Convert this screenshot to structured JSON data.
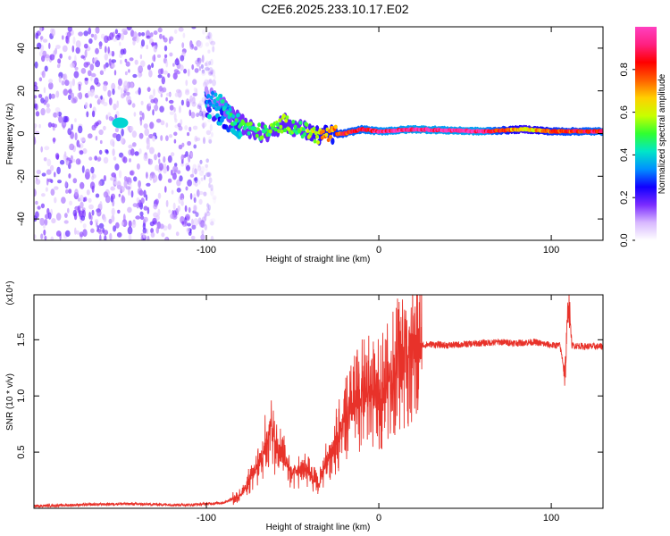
{
  "title": "C2E6.2025.233.10.17.E02",
  "chart_data": [
    {
      "type": "heatmap",
      "name": "spectrogram",
      "xlabel": "Height of straight line (km)",
      "ylabel": "Frequency (Hz)",
      "xlim": [
        -200,
        130
      ],
      "ylim": [
        -50,
        50
      ],
      "x_ticks": [
        -100,
        0,
        100
      ],
      "x_tick_labels": [
        "-100",
        "0",
        "100"
      ],
      "y_ticks": [
        -40,
        -20,
        0,
        20,
        40
      ],
      "y_tick_labels": [
        "-40",
        "-20",
        "0",
        "20",
        "40"
      ],
      "colorbar": {
        "label": "Normalized spectral amplitude",
        "range": [
          0,
          1
        ],
        "ticks": [
          0,
          0.2,
          0.4,
          0.6,
          0.8
        ],
        "tick_labels": [
          "0.0",
          "0.2",
          "0.4",
          "0.6",
          "0.8"
        ],
        "colors": [
          "#ffffff",
          "#d8b8ff",
          "#7a2bff",
          "#1000ff",
          "#0090ff",
          "#00e6c8",
          "#30ff30",
          "#c8ff00",
          "#ffd000",
          "#ff6000",
          "#ff0000",
          "#ff2080",
          "#ff40c0"
        ]
      },
      "regions": [
        {
          "desc": "noise",
          "x_range": [
            -200,
            -100
          ],
          "freq_range": [
            -50,
            50
          ],
          "amplitude": 0.1
        },
        {
          "desc": "blob",
          "x": -150,
          "freq": 5,
          "amplitude": 0.4
        },
        {
          "desc": "signal-onset",
          "x_range": [
            -100,
            -80
          ],
          "freq_range": [
            8,
            20
          ],
          "amplitude": 0.3
        }
      ],
      "signal_track": [
        {
          "x": -100,
          "freq": 18,
          "amplitude": 0.3
        },
        {
          "x": -92,
          "freq": 15,
          "amplitude": 0.4
        },
        {
          "x": -85,
          "freq": 8,
          "amplitude": 0.45
        },
        {
          "x": -75,
          "freq": 2,
          "amplitude": 0.5
        },
        {
          "x": -65,
          "freq": 0,
          "amplitude": 0.5
        },
        {
          "x": -55,
          "freq": 5,
          "amplitude": 0.55
        },
        {
          "x": -45,
          "freq": 2,
          "amplitude": 0.5
        },
        {
          "x": -35,
          "freq": -1,
          "amplitude": 0.65
        },
        {
          "x": -20,
          "freq": 0,
          "amplitude": 0.85
        },
        {
          "x": -10,
          "freq": 2,
          "amplitude": 0.9
        },
        {
          "x": 0,
          "freq": 1,
          "amplitude": 0.95
        },
        {
          "x": 20,
          "freq": 2,
          "amplitude": 1.0
        },
        {
          "x": 60,
          "freq": 1,
          "amplitude": 1.0
        },
        {
          "x": 85,
          "freq": 2,
          "amplitude": 0.6
        },
        {
          "x": 100,
          "freq": 1,
          "amplitude": 0.8
        },
        {
          "x": 130,
          "freq": 1,
          "amplitude": 0.9
        }
      ]
    },
    {
      "type": "line",
      "name": "snr",
      "xlabel": "Height of straight line (km)",
      "ylabel": "SNR (10 * v/v)",
      "y_multiplier": "(x10⁴)",
      "xlim": [
        -200,
        130
      ],
      "ylim": [
        0,
        1.9
      ],
      "x_ticks": [
        -100,
        0,
        100
      ],
      "x_tick_labels": [
        "-100",
        "0",
        "100"
      ],
      "y_ticks": [
        0.5,
        1.0,
        1.5
      ],
      "y_tick_labels": [
        "0.5",
        "1.0",
        "1.5"
      ],
      "color": "#e8322a",
      "series": [
        {
          "name": "SNR",
          "x": [
            -200,
            -150,
            -110,
            -90,
            -80,
            -75,
            -70,
            -65,
            -62,
            -60,
            -55,
            -50,
            -45,
            -40,
            -35,
            -30,
            -25,
            -20,
            -15,
            -10,
            -5,
            0,
            5,
            10,
            15,
            20,
            25,
            30,
            40,
            50,
            60,
            70,
            80,
            90,
            100,
            105,
            108,
            110,
            112,
            120,
            130
          ],
          "y": [
            0.02,
            0.04,
            0.03,
            0.05,
            0.12,
            0.25,
            0.4,
            0.6,
            0.75,
            0.55,
            0.45,
            0.3,
            0.35,
            0.3,
            0.2,
            0.45,
            0.6,
            0.75,
            0.9,
            1.0,
            1.05,
            1.0,
            1.15,
            1.25,
            1.35,
            1.42,
            1.45,
            1.46,
            1.45,
            1.46,
            1.47,
            1.48,
            1.47,
            1.48,
            1.45,
            1.45,
            1.2,
            1.85,
            1.45,
            1.44,
            1.44
          ]
        }
      ]
    }
  ]
}
